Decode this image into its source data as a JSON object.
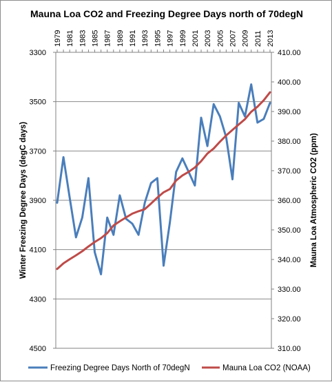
{
  "chart_data": {
    "type": "line",
    "title": "Mauna Loa CO2 and Freezing Degree Days north of 70degN",
    "x": [
      1979,
      1980,
      1981,
      1982,
      1983,
      1984,
      1985,
      1986,
      1987,
      1988,
      1989,
      1990,
      1991,
      1992,
      1993,
      1994,
      1995,
      1996,
      1997,
      1998,
      1999,
      2000,
      2001,
      2002,
      2003,
      2004,
      2005,
      2006,
      2007,
      2008,
      2009,
      2010,
      2011,
      2012,
      2013
    ],
    "x_tick_labels": [
      "1979",
      "1981",
      "1983",
      "1985",
      "1987",
      "1989",
      "1991",
      "1993",
      "1995",
      "1997",
      "1999",
      "2001",
      "2003",
      "2005",
      "2007",
      "2009",
      "2011",
      "2013"
    ],
    "y_left": {
      "label": "Winter Freezing Degree Days  (degC days)",
      "reversed": true,
      "range": [
        3300,
        4500
      ],
      "ticks": [
        "3300",
        "3500",
        "3700",
        "3900",
        "4100",
        "4300",
        "4500"
      ]
    },
    "y_right": {
      "label": "Mauna Loa Atmospheric CO2 (ppm)",
      "range": [
        310,
        410
      ],
      "ticks": [
        "310.00",
        "320.00",
        "330.00",
        "340.00",
        "350.00",
        "360.00",
        "370.00",
        "380.00",
        "390.00",
        "400.00",
        "410.00"
      ]
    },
    "grid": true,
    "legend_position": "bottom",
    "series": [
      {
        "name": "Freezing Degree Days North of 70degN",
        "axis": "left",
        "color": "#4a7ebb",
        "values": [
          3910,
          3725,
          3890,
          4050,
          3970,
          3810,
          4110,
          4200,
          3970,
          4040,
          3880,
          3975,
          3995,
          4040,
          3910,
          3830,
          3810,
          4165,
          3990,
          3785,
          3730,
          3785,
          3840,
          3565,
          3680,
          3510,
          3560,
          3645,
          3815,
          3505,
          3560,
          3430,
          3585,
          3570,
          3505
        ]
      },
      {
        "name": "Mauna Loa CO2 (NOAA)",
        "axis": "right",
        "color": "#be4b48",
        "values": [
          336.8,
          338.7,
          340.1,
          341.4,
          342.8,
          344.4,
          345.9,
          347.2,
          348.9,
          351.5,
          352.9,
          354.2,
          355.5,
          356.3,
          357.0,
          358.9,
          360.9,
          362.7,
          363.8,
          366.7,
          368.4,
          369.6,
          371.1,
          373.2,
          375.8,
          377.5,
          379.8,
          381.9,
          383.8,
          385.6,
          387.4,
          389.9,
          391.6,
          393.8,
          396.5
        ]
      }
    ]
  }
}
